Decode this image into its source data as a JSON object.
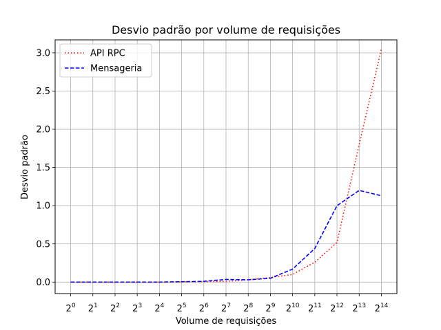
{
  "chart_data": {
    "type": "line",
    "title": "Desvio padrão por volume de requisições",
    "xlabel": "Volume de requisições",
    "ylabel": "Desvio padrão",
    "x_scale": "log2",
    "x": [
      1,
      2,
      4,
      8,
      16,
      32,
      64,
      128,
      256,
      512,
      1024,
      2048,
      4096,
      8192,
      16384
    ],
    "x_tick_base": "2",
    "x_tick_exponents": [
      "0",
      "1",
      "2",
      "3",
      "4",
      "5",
      "6",
      "7",
      "8",
      "9",
      "10",
      "11",
      "12",
      "13",
      "14"
    ],
    "y_ticks": [
      "0.0",
      "0.5",
      "1.0",
      "1.5",
      "2.0",
      "2.5",
      "3.0"
    ],
    "ylim": [
      -0.15,
      3.17
    ],
    "grid": true,
    "legend_position": "top-left",
    "series": [
      {
        "name": "API RPC",
        "color": "#ff0000",
        "line_style": "dotted",
        "values": [
          0.0,
          0.0,
          0.0,
          0.0,
          0.0,
          0.003,
          0.006,
          0.01,
          0.03,
          0.06,
          0.1,
          0.26,
          0.52,
          1.8,
          3.05
        ]
      },
      {
        "name": "Mensageria",
        "color": "#0000ff",
        "line_style": "dashed",
        "values": [
          0.0,
          0.0,
          0.0,
          0.0,
          0.0,
          0.005,
          0.01,
          0.035,
          0.03,
          0.05,
          0.17,
          0.44,
          1.0,
          1.2,
          1.13
        ]
      }
    ]
  }
}
